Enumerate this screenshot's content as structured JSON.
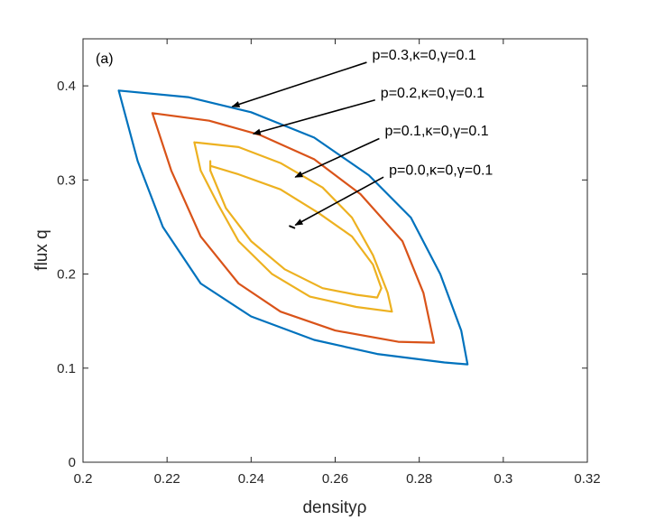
{
  "chart_data": {
    "type": "line",
    "panel_label": "(a)",
    "xlabel": "densityρ",
    "ylabel": "flux q",
    "xlim": [
      0.2,
      0.32
    ],
    "ylim": [
      0,
      0.45
    ],
    "xticks": [
      0.2,
      0.22,
      0.24,
      0.26,
      0.28,
      0.3,
      0.32
    ],
    "xtick_labels": [
      "0.2",
      "0.22",
      "0.24",
      "0.26",
      "0.28",
      "0.3",
      "0.32"
    ],
    "yticks": [
      0,
      0.1,
      0.2,
      0.3,
      0.4
    ],
    "ytick_labels": [
      "0",
      "0.1",
      "0.2",
      "0.3",
      "0.4"
    ],
    "series": [
      {
        "name": "p=0.3",
        "color": "#0072BD",
        "points": [
          [
            0.2085,
            0.395
          ],
          [
            0.225,
            0.388
          ],
          [
            0.24,
            0.372
          ],
          [
            0.255,
            0.345
          ],
          [
            0.268,
            0.305
          ],
          [
            0.278,
            0.26
          ],
          [
            0.285,
            0.2
          ],
          [
            0.29,
            0.14
          ],
          [
            0.2915,
            0.104
          ],
          [
            0.286,
            0.106
          ],
          [
            0.27,
            0.115
          ],
          [
            0.255,
            0.13
          ],
          [
            0.24,
            0.155
          ],
          [
            0.228,
            0.19
          ],
          [
            0.219,
            0.25
          ],
          [
            0.213,
            0.32
          ],
          [
            0.2085,
            0.395
          ]
        ]
      },
      {
        "name": "p=0.2",
        "color": "#D95319",
        "points": [
          [
            0.2165,
            0.371
          ],
          [
            0.23,
            0.363
          ],
          [
            0.242,
            0.348
          ],
          [
            0.255,
            0.322
          ],
          [
            0.266,
            0.285
          ],
          [
            0.276,
            0.235
          ],
          [
            0.281,
            0.18
          ],
          [
            0.2835,
            0.127
          ],
          [
            0.275,
            0.128
          ],
          [
            0.26,
            0.14
          ],
          [
            0.247,
            0.16
          ],
          [
            0.237,
            0.19
          ],
          [
            0.228,
            0.24
          ],
          [
            0.221,
            0.31
          ],
          [
            0.2165,
            0.371
          ]
        ]
      },
      {
        "name": "p=0.1",
        "color": "#EDB120",
        "points": [
          [
            0.2265,
            0.34
          ],
          [
            0.237,
            0.335
          ],
          [
            0.247,
            0.318
          ],
          [
            0.257,
            0.292
          ],
          [
            0.264,
            0.26
          ],
          [
            0.269,
            0.22
          ],
          [
            0.2725,
            0.18
          ],
          [
            0.2735,
            0.16
          ],
          [
            0.265,
            0.165
          ],
          [
            0.254,
            0.176
          ],
          [
            0.245,
            0.2
          ],
          [
            0.237,
            0.235
          ],
          [
            0.232,
            0.275
          ],
          [
            0.228,
            0.31
          ],
          [
            0.2265,
            0.34
          ]
        ]
      },
      {
        "name": "p=0.1 inner",
        "color": "#EDB120",
        "points": [
          [
            0.2303,
            0.32
          ],
          [
            0.2303,
            0.31
          ],
          [
            0.234,
            0.27
          ],
          [
            0.24,
            0.235
          ],
          [
            0.248,
            0.205
          ],
          [
            0.257,
            0.185
          ],
          [
            0.265,
            0.178
          ],
          [
            0.27,
            0.175
          ],
          [
            0.271,
            0.185
          ],
          [
            0.269,
            0.21
          ],
          [
            0.264,
            0.24
          ],
          [
            0.256,
            0.265
          ],
          [
            0.247,
            0.29
          ],
          [
            0.237,
            0.306
          ],
          [
            0.2303,
            0.315
          ]
        ]
      },
      {
        "name": "p=0.0",
        "color": "#000000",
        "points": [
          [
            0.2492,
            0.251
          ],
          [
            0.2503,
            0.249
          ]
        ]
      }
    ],
    "annotations": [
      {
        "text": "p=0.3,κ=0,γ=0.1",
        "text_xy": [
          0.2688,
          0.4325
        ],
        "arrow_from": [
          0.2675,
          0.425
        ],
        "arrow_to": [
          0.2355,
          0.378
        ]
      },
      {
        "text": "p=0.2,κ=0,γ=0.1",
        "text_xy": [
          0.2708,
          0.3925
        ],
        "arrow_from": [
          0.2695,
          0.385
        ],
        "arrow_to": [
          0.2405,
          0.349
        ]
      },
      {
        "text": "p=0.1,κ=0,γ=0.1",
        "text_xy": [
          0.2718,
          0.352
        ],
        "arrow_from": [
          0.2705,
          0.344
        ],
        "arrow_to": [
          0.2505,
          0.303
        ]
      },
      {
        "text": "p=0.0,κ=0,γ=0.1",
        "text_xy": [
          0.2728,
          0.3105
        ],
        "arrow_from": [
          0.2715,
          0.303
        ],
        "arrow_to": [
          0.2505,
          0.252
        ]
      }
    ]
  }
}
